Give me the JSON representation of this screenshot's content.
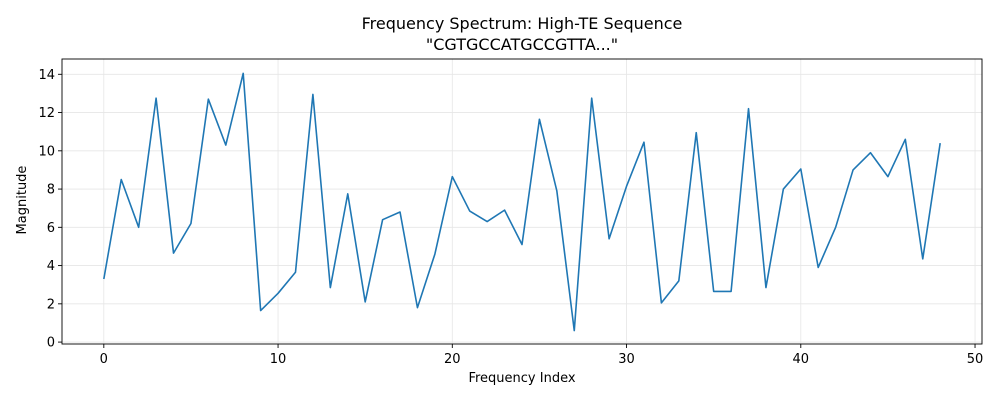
{
  "chart_data": {
    "type": "line",
    "title": "Frequency Spectrum: High-TE Sequence",
    "subtitle": "\"CGTGCCATGCCGTTA...\"",
    "xlabel": "Frequency Index",
    "ylabel": "Magnitude",
    "xlim": [
      -2.4,
      50.4
    ],
    "ylim": [
      -0.1,
      14.8
    ],
    "xticks": [
      0,
      10,
      20,
      30,
      40,
      50
    ],
    "yticks": [
      0,
      2,
      4,
      6,
      8,
      10,
      12,
      14
    ],
    "grid": true,
    "legend": "none",
    "line_color": "#1f77b4",
    "series": [
      {
        "x": [
          0,
          1,
          2,
          3,
          4,
          5,
          6,
          7,
          8,
          9,
          10,
          11,
          12,
          13,
          14,
          15,
          16,
          17,
          18,
          19,
          20,
          21,
          22,
          23,
          24,
          25,
          26,
          27,
          28,
          29,
          30,
          31,
          32,
          33,
          34,
          35,
          36,
          37,
          38,
          39,
          40,
          41,
          42,
          43,
          44,
          45,
          46,
          47,
          48
        ],
        "values": [
          3.3,
          8.5,
          6.0,
          12.75,
          4.65,
          6.2,
          12.7,
          10.3,
          14.05,
          1.65,
          2.55,
          3.65,
          12.95,
          2.85,
          7.75,
          2.1,
          6.4,
          6.8,
          1.8,
          4.6,
          8.65,
          6.85,
          6.3,
          6.9,
          5.1,
          11.65,
          7.9,
          0.6,
          12.75,
          5.4,
          8.15,
          10.45,
          2.05,
          3.2,
          10.95,
          2.65,
          2.65,
          12.2,
          2.85,
          8.0,
          9.05,
          3.9,
          6.0,
          9.0,
          9.9,
          8.65,
          10.6,
          4.35,
          10.4
        ]
      }
    ]
  }
}
